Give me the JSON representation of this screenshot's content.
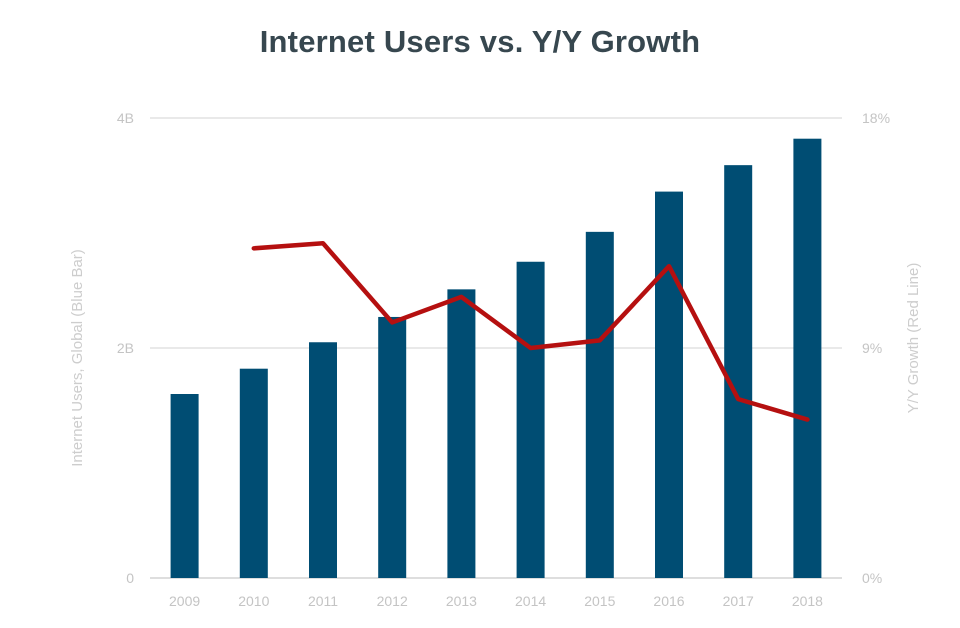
{
  "chart_data": {
    "type": "bar",
    "title": "Internet Users vs. Y/Y Growth",
    "categories": [
      "2009",
      "2010",
      "2011",
      "2012",
      "2013",
      "2014",
      "2015",
      "2016",
      "2017",
      "2018"
    ],
    "series": [
      {
        "name": "",
        "type": "bar",
        "axis": "left",
        "color": "#004d73",
        "values": [
          1.6,
          1.82,
          2.05,
          2.27,
          2.51,
          2.75,
          3.01,
          3.36,
          3.59,
          3.82
        ]
      },
      {
        "name": "",
        "type": "line",
        "axis": "right",
        "color": "#b51010",
        "values": [
          null,
          12.9,
          13.1,
          10.0,
          11.0,
          9.0,
          9.3,
          12.2,
          7.0,
          6.2
        ]
      }
    ],
    "y_left": {
      "label": "Internet Users, Global (Blue Bar)",
      "range": [
        0,
        4
      ],
      "ticks": [
        0,
        2,
        4
      ],
      "tick_labels": [
        "0",
        "2B",
        "4B"
      ]
    },
    "y_right": {
      "label": "Y/Y Growth (Red Line)",
      "range": [
        0,
        18
      ],
      "ticks": [
        0,
        9,
        18
      ],
      "tick_labels": [
        "0%",
        "9%",
        "18%"
      ]
    },
    "grid": true,
    "legend": "none"
  }
}
